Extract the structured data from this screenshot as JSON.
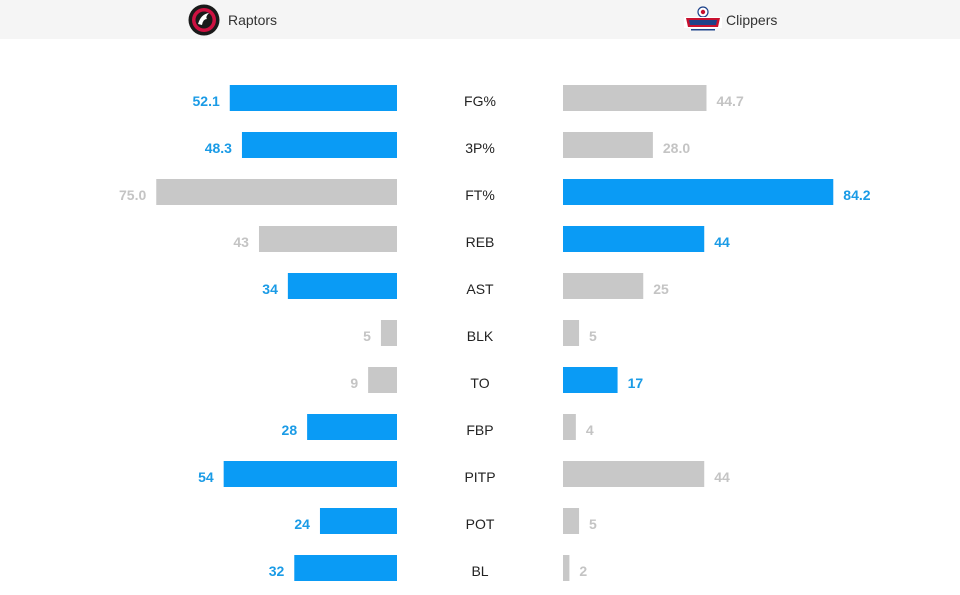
{
  "header": {
    "home_team": "Raptors",
    "away_team": "Clippers",
    "home_logo_icon": "raptors-logo-icon",
    "away_logo_icon": "clippers-logo-icon"
  },
  "colors": {
    "leader": "#0a9bf5",
    "trailer": "#c8c8c8",
    "leader_text": "#1a9be6",
    "trailer_text": "#c4c4c4"
  },
  "chart_data": {
    "type": "bar",
    "orientation": "horizontal-butterfly",
    "categories": [
      "FG%",
      "3P%",
      "FT%",
      "REB",
      "AST",
      "BLK",
      "TO",
      "FBP",
      "PITP",
      "POT",
      "BL"
    ],
    "series": [
      {
        "name": "Raptors",
        "values": [
          52.1,
          48.3,
          75.0,
          43,
          34,
          5,
          9,
          28,
          54,
          24,
          32
        ],
        "labels": [
          "52.1",
          "48.3",
          "75.0",
          "43",
          "34",
          "5",
          "9",
          "28",
          "54",
          "24",
          "32"
        ]
      },
      {
        "name": "Clippers",
        "values": [
          44.7,
          28.0,
          84.2,
          44,
          25,
          5,
          17,
          4,
          44,
          5,
          2
        ],
        "labels": [
          "44.7",
          "28.0",
          "84.2",
          "44",
          "25",
          "5",
          "17",
          "4",
          "44",
          "5",
          "2"
        ]
      }
    ],
    "leader": [
      "home",
      "home",
      "away",
      "away",
      "home",
      "none",
      "away",
      "home",
      "home",
      "home",
      "home"
    ],
    "grid": false,
    "legend": "top"
  }
}
